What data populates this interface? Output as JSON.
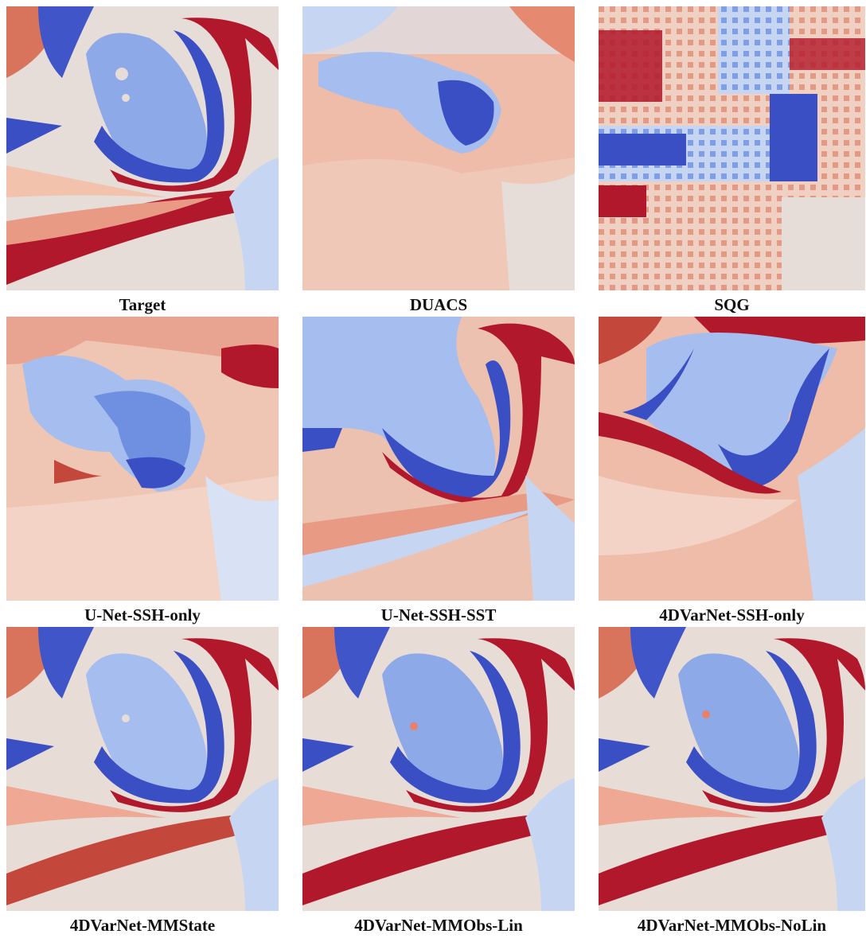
{
  "figure": {
    "panels": [
      {
        "id": "target",
        "label": "Target"
      },
      {
        "id": "duacs",
        "label": "DUACS"
      },
      {
        "id": "sqg",
        "label": "SQG"
      },
      {
        "id": "unet-ssh-only",
        "label": "U-Net-SSH-only"
      },
      {
        "id": "unet-ssh-sst",
        "label": "U-Net-SSH-SST"
      },
      {
        "id": "4dvarnet-ssh-only",
        "label": "4DVarNet-SSH-only"
      },
      {
        "id": "4dvarnet-mmstate",
        "label": "4DVarNet-MMState"
      },
      {
        "id": "4dvarnet-mmobs-lin",
        "label": "4DVarNet-MMObs-Lin"
      },
      {
        "id": "4dvarnet-mmobs-nolin",
        "label": "4DVarNet-MMObs-NoLin"
      }
    ],
    "colors": {
      "red": "#b2182b",
      "light_red": "#e8806a",
      "pale_red": "#f2c2ad",
      "neutral": "#e6e2e0",
      "pale_blue": "#c6d6f2",
      "light_blue": "#7f9ee6",
      "blue": "#3a4fc4"
    }
  }
}
